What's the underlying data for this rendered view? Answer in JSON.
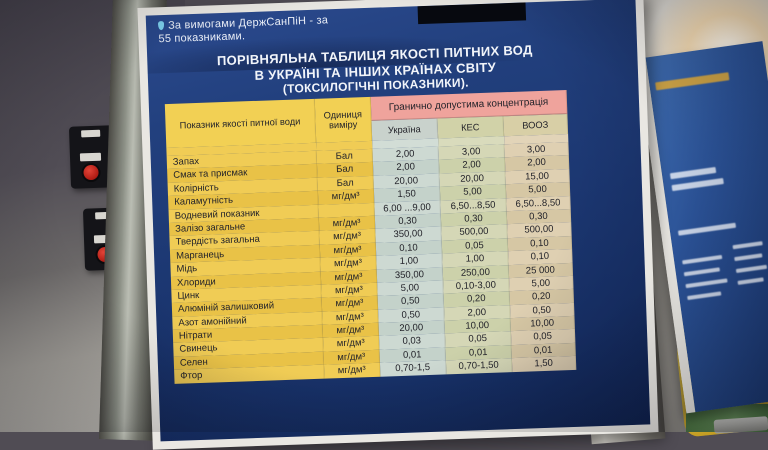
{
  "poster": {
    "note": {
      "line1": "За вимогами ДержСанПіН - за",
      "line2": "55 показниками."
    },
    "title": {
      "line1": "ПОРІВНЯЛЬНА ТАБЛИЦЯ ЯКОСТІ ПИТНИХ ВОД",
      "line2": "В УКРАЇНІ ТА ІНШИХ КРАЇНАХ СВІТУ",
      "line3": "(ТОКСИЛОГІЧНІ ПОКАЗНИКИ)."
    }
  },
  "table": {
    "headers": {
      "indicator": "Показник якості питної води",
      "unit": "Одиниця виміру",
      "limit": "Гранично допустима концентрація",
      "countries": [
        "Україна",
        "КЕС",
        "ВООЗ"
      ]
    },
    "rows": [
      {
        "label": "Запах",
        "unit": "Бал",
        "ua": "2,00",
        "kes": "3,00",
        "vooz": "3,00"
      },
      {
        "label": "Смак та присмак",
        "unit": "Бал",
        "ua": "2,00",
        "kes": "2,00",
        "vooz": "2,00"
      },
      {
        "label": "Колірність",
        "unit": "Бал",
        "ua": "20,00",
        "kes": "20,00",
        "vooz": "15,00"
      },
      {
        "label": "Каламутність",
        "unit": "мг/дм³",
        "ua": "1,50",
        "kes": "5,00",
        "vooz": "5,00"
      },
      {
        "label": "Водневий показник",
        "unit": "",
        "ua": "6,00 ...9,00",
        "kes": "6,50...8,50",
        "vooz": "6,50...8,50"
      },
      {
        "label": "Залізо загальне",
        "unit": "мг/дм³",
        "ua": "0,30",
        "kes": "0,30",
        "vooz": "0,30"
      },
      {
        "label": "Твердість загальна",
        "unit": "мг/дм³",
        "ua": "350,00",
        "kes": "500,00",
        "vooz": "500,00"
      },
      {
        "label": "Марганець",
        "unit": "мг/дм³",
        "ua": "0,10",
        "kes": "0,05",
        "vooz": "0,10"
      },
      {
        "label": "Мідь",
        "unit": "мг/дм³",
        "ua": "1,00",
        "kes": "1,00",
        "vooz": "0,10"
      },
      {
        "label": "Хлориди",
        "unit": "мг/дм³",
        "ua": "350,00",
        "kes": "250,00",
        "vooz": "25 000"
      },
      {
        "label": "Цинк",
        "unit": "мг/дм³",
        "ua": "5,00",
        "kes": "0,10-3,00",
        "vooz": "5,00"
      },
      {
        "label": "Алюміній залишковий",
        "unit": "мг/дм³",
        "ua": "0,50",
        "kes": "0,20",
        "vooz": "0,20"
      },
      {
        "label": "Азот амонійний",
        "unit": "мг/дм³",
        "ua": "0,50",
        "kes": "2,00",
        "vooz": "0,50"
      },
      {
        "label": "Нітрати",
        "unit": "мг/дм³",
        "ua": "20,00",
        "kes": "10,00",
        "vooz": "10,00"
      },
      {
        "label": "Свинець",
        "unit": "мг/дм³",
        "ua": "0,03",
        "kes": "0,05",
        "vooz": "0,05"
      },
      {
        "label": "Селен",
        "unit": "мг/дм³",
        "ua": "0,01",
        "kes": "0,01",
        "vooz": "0,01"
      },
      {
        "label": "Фтор",
        "unit": "мг/дм³",
        "ua": "0,70-1,5",
        "kes": "0,70-1,50",
        "vooz": "1,50"
      }
    ]
  },
  "colors": {
    "poster_blue": "#1e3b76",
    "header_pink": "#efa39c",
    "header_yellow": "#f2d054",
    "col_ukraine": "#ccd9d2",
    "col_kes": "#d4d6b4",
    "col_vooz": "#decfb0",
    "red_button": "#c32020"
  }
}
